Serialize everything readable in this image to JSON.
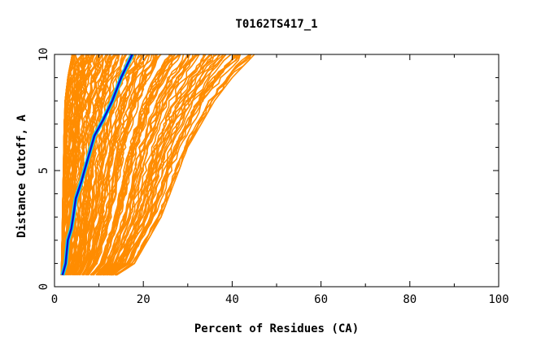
{
  "chart_data": {
    "type": "line",
    "title": "T0162TS417_1",
    "xlabel": "Percent of Residues (CA)",
    "ylabel": "Distance Cutoff, A",
    "xlim": [
      0,
      100
    ],
    "ylim": [
      0,
      10
    ],
    "x_ticks": [
      "0",
      "20",
      "40",
      "60",
      "80",
      "100"
    ],
    "y_ticks": [
      "0",
      "5",
      "10"
    ],
    "grid": false,
    "legend": "none",
    "colors": {
      "background_models": "#ff8c00",
      "highlight_outline": "#00e5ff",
      "highlight": "#1010d0",
      "axes": "#000000"
    },
    "background_envelope": {
      "description_free": true,
      "y": [
        0.5,
        1,
        2,
        3,
        4,
        5,
        6,
        7,
        8,
        9,
        10
      ],
      "x_min": [
        1.5,
        1.6,
        1.7,
        1.8,
        1.9,
        2.0,
        2.1,
        2.2,
        2.4,
        3.0,
        4.0
      ],
      "x_max": [
        14,
        18,
        21,
        24,
        26,
        28,
        30,
        33,
        36,
        40,
        45
      ]
    },
    "series": [
      {
        "name": "",
        "points": [
          [
            1.8,
            0.5
          ],
          [
            2.5,
            1.0
          ],
          [
            3.0,
            2.0
          ],
          [
            3.8,
            2.5
          ],
          [
            4.2,
            3.0
          ],
          [
            4.8,
            3.8
          ],
          [
            6.0,
            4.5
          ],
          [
            7.5,
            5.5
          ],
          [
            9.0,
            6.5
          ],
          [
            11.0,
            7.2
          ],
          [
            13.0,
            8.0
          ],
          [
            15.0,
            9.0
          ],
          [
            17.5,
            10.0
          ]
        ]
      }
    ]
  }
}
